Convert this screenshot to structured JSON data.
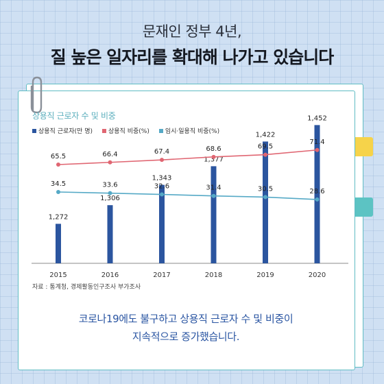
{
  "header": {
    "subtitle": "문재인 정부 4년,",
    "title": "질 높은 일자리를 확대해 나가고 있습니다"
  },
  "colors": {
    "bar": "#2b559f",
    "regular_ratio": "#e06672",
    "temp_ratio": "#55a9c6",
    "accent_title": "#5aaebc",
    "caption": "#2a55a2"
  },
  "icons": [
    "paperclip-icon"
  ],
  "chart_data": {
    "type": "bar",
    "title": "상용직 근로자 수 및 비중",
    "categories": [
      "2015",
      "2016",
      "2017",
      "2018",
      "2019",
      "2020"
    ],
    "series": [
      {
        "name": "상용직 근로자(만 명)",
        "type": "bar",
        "values": [
          1272,
          1306,
          1343,
          1377,
          1422,
          1452
        ],
        "labels": [
          "1,272",
          "1,306",
          "1,343",
          "1,377",
          "1,422",
          "1,452"
        ]
      },
      {
        "name": "상용직 비중(%)",
        "type": "line",
        "values": [
          65.5,
          66.4,
          67.4,
          68.6,
          69.5,
          71.4
        ],
        "labels": [
          "65.5",
          "66.4",
          "67.4",
          "68.6",
          "69.5",
          "71.4"
        ]
      },
      {
        "name": "임시·일용직 비중(%)",
        "type": "line",
        "values": [
          34.5,
          33.6,
          32.6,
          31.4,
          30.5,
          28.6
        ],
        "labels": [
          "34.5",
          "33.6",
          "32.6",
          "31.4",
          "30.5",
          "28.6"
        ]
      }
    ],
    "grid": false,
    "legend_position": "top-left"
  },
  "source": "자료 : 통계청, 경제활동인구조사 부가조사",
  "caption": {
    "line1": "코로나19에도 불구하고 상용직 근로자 수 및 비중이",
    "line2": "지속적으로 증가했습니다."
  }
}
